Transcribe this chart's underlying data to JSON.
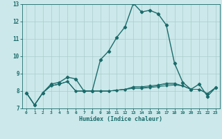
{
  "xlabel": "Humidex (Indice chaleur)",
  "bg_color": "#cce8ea",
  "grid_color": "#aacccc",
  "line_color": "#1a6b6b",
  "xlim": [
    -0.5,
    23.5
  ],
  "ylim": [
    7,
    13
  ],
  "xticks": [
    0,
    1,
    2,
    3,
    4,
    5,
    6,
    7,
    8,
    9,
    10,
    11,
    12,
    13,
    14,
    15,
    16,
    17,
    18,
    19,
    20,
    21,
    22,
    23
  ],
  "yticks": [
    7,
    8,
    9,
    10,
    11,
    12,
    13
  ],
  "series_main": [
    7.9,
    7.2,
    7.9,
    8.4,
    8.5,
    8.8,
    8.7,
    8.0,
    8.0,
    9.8,
    10.3,
    11.1,
    11.7,
    13.05,
    12.55,
    12.65,
    12.45,
    11.8,
    9.6,
    8.5,
    8.1,
    8.4,
    7.7,
    8.2
  ],
  "series_flat": [
    [
      7.9,
      7.2,
      7.9,
      8.3,
      8.4,
      8.55,
      8.0,
      8.0,
      8.0,
      8.0,
      8.0,
      8.05,
      8.1,
      8.15,
      8.15,
      8.2,
      8.25,
      8.3,
      8.35,
      8.3,
      8.1,
      8.1,
      7.85,
      8.2
    ],
    [
      7.9,
      7.2,
      7.9,
      8.3,
      8.4,
      8.55,
      8.0,
      8.0,
      8.0,
      8.0,
      8.0,
      8.05,
      8.1,
      8.2,
      8.2,
      8.25,
      8.3,
      8.4,
      8.4,
      8.3,
      8.1,
      8.1,
      7.85,
      8.2
    ],
    [
      7.9,
      7.2,
      7.9,
      8.3,
      8.4,
      8.55,
      8.0,
      8.0,
      8.0,
      8.0,
      8.0,
      8.05,
      8.1,
      8.25,
      8.25,
      8.3,
      8.35,
      8.45,
      8.45,
      8.3,
      8.1,
      8.1,
      7.85,
      8.2
    ]
  ]
}
